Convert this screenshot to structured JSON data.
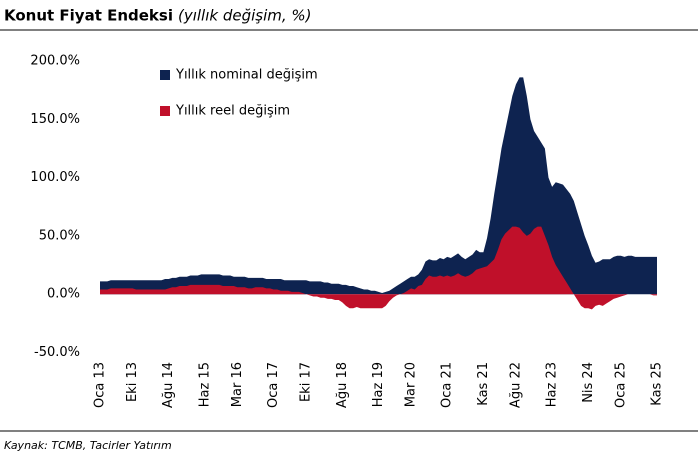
{
  "chart_data": {
    "type": "area",
    "title": "Konut Fiyat Endeksi",
    "subtitle": "(yıllık değişim, %)",
    "source": "Kaynak: TCMB, Tacirler Yatırım",
    "categories": [
      "Oca 13",
      null,
      null,
      null,
      null,
      null,
      null,
      null,
      null,
      "Eki 13",
      null,
      null,
      null,
      null,
      null,
      null,
      null,
      null,
      null,
      "Ağu 14",
      null,
      null,
      null,
      null,
      null,
      null,
      null,
      null,
      null,
      "Haz 15",
      null,
      null,
      null,
      null,
      null,
      null,
      null,
      null,
      "Mar 16",
      null,
      null,
      null,
      null,
      null,
      null,
      null,
      null,
      null,
      "Oca 17",
      null,
      null,
      null,
      null,
      null,
      null,
      null,
      null,
      "Eki 17",
      null,
      null,
      null,
      null,
      null,
      null,
      null,
      null,
      null,
      "Ağu 18",
      null,
      null,
      null,
      null,
      null,
      null,
      null,
      null,
      null,
      "Haz 19",
      null,
      null,
      null,
      null,
      null,
      null,
      null,
      null,
      "Mar 20",
      null,
      null,
      null,
      null,
      null,
      null,
      null,
      null,
      null,
      "Oca 21",
      null,
      null,
      null,
      null,
      null,
      null,
      null,
      null,
      null,
      "Kas 21",
      null,
      null,
      null,
      null,
      null,
      null,
      null,
      null,
      "Ağu 22",
      null,
      null,
      null,
      null,
      null,
      null,
      null,
      null,
      null,
      "Haz 23",
      null,
      null,
      null,
      null,
      null,
      null,
      null,
      null,
      null,
      "Nis 24",
      null,
      null,
      null,
      null,
      null,
      null,
      null,
      null,
      "Oca 25",
      null,
      null,
      null,
      null,
      null,
      null,
      null,
      null,
      null,
      "Kas 25"
    ],
    "series": [
      {
        "name": "Yıllık nominal değişim",
        "color": "#0e2350",
        "values": [
          11,
          11,
          11,
          12,
          12,
          12,
          12,
          12,
          12,
          12,
          12,
          12,
          12,
          12,
          12,
          12,
          12,
          12,
          13,
          13,
          14,
          14,
          15,
          15,
          15,
          16,
          16,
          16,
          17,
          17,
          17,
          17,
          17,
          17,
          16,
          16,
          16,
          15,
          15,
          15,
          15,
          14,
          14,
          14,
          14,
          14,
          13,
          13,
          13,
          13,
          13,
          12,
          12,
          12,
          12,
          12,
          12,
          12,
          11,
          11,
          11,
          11,
          10,
          10,
          9,
          9,
          9,
          8,
          8,
          7,
          7,
          6,
          5,
          4,
          4,
          3,
          3,
          2,
          1,
          2,
          3,
          5,
          7,
          9,
          11,
          13,
          15,
          15,
          17,
          21,
          28,
          30,
          29,
          29,
          31,
          30,
          32,
          31,
          33,
          35,
          32,
          30,
          32,
          34,
          38,
          36,
          36,
          48,
          65,
          86,
          105,
          125,
          140,
          155,
          170,
          180,
          186,
          186,
          170,
          150,
          140,
          135,
          130,
          125,
          100,
          92,
          96,
          95,
          94,
          90,
          86,
          80,
          70,
          60,
          50,
          42,
          33,
          27,
          28,
          30,
          30,
          30,
          32,
          33,
          33,
          32,
          33,
          33,
          32,
          32,
          32,
          32,
          32,
          32,
          32
        ]
      },
      {
        "name": "Yıllık reel değişim",
        "color": "#c0102a",
        "values": [
          4,
          4,
          4,
          5,
          5,
          5,
          5,
          5,
          5,
          5,
          4,
          4,
          4,
          4,
          4,
          4,
          4,
          4,
          4,
          5,
          6,
          6,
          7,
          7,
          7,
          8,
          8,
          8,
          8,
          8,
          8,
          8,
          8,
          8,
          7,
          7,
          7,
          7,
          6,
          6,
          6,
          5,
          5,
          6,
          6,
          6,
          5,
          5,
          4,
          4,
          3,
          3,
          3,
          2,
          2,
          2,
          1,
          0,
          -1,
          -2,
          -2,
          -3,
          -3,
          -4,
          -4,
          -5,
          -5,
          -7,
          -10,
          -12,
          -12,
          -11,
          -12,
          -12,
          -12,
          -12,
          -12,
          -12,
          -12,
          -10,
          -6,
          -3,
          -1,
          0,
          1,
          3,
          5,
          4,
          7,
          8,
          13,
          16,
          15,
          15,
          16,
          15,
          16,
          15,
          16,
          18,
          16,
          15,
          16,
          18,
          21,
          22,
          23,
          24,
          27,
          30,
          38,
          47,
          52,
          55,
          58,
          58,
          57,
          53,
          50,
          52,
          56,
          58,
          58,
          50,
          42,
          32,
          25,
          20,
          15,
          10,
          5,
          0,
          -5,
          -10,
          -12,
          -12,
          -13,
          -10,
          -9,
          -10,
          -8,
          -6,
          -4,
          -3,
          -2,
          -1,
          0,
          0,
          0,
          0,
          0,
          0,
          0,
          -1,
          -1
        ]
      }
    ],
    "ylim": [
      -50,
      200
    ],
    "yticks": [
      {
        "value": -50,
        "label": "-50.0%"
      },
      {
        "value": 0,
        "label": "0.0%"
      },
      {
        "value": 50,
        "label": "50.0%"
      },
      {
        "value": 100,
        "label": "100.0%"
      },
      {
        "value": 150,
        "label": "150.0%"
      },
      {
        "value": 200,
        "label": "200.0%"
      }
    ],
    "grid": false,
    "legend": "upper-left"
  }
}
